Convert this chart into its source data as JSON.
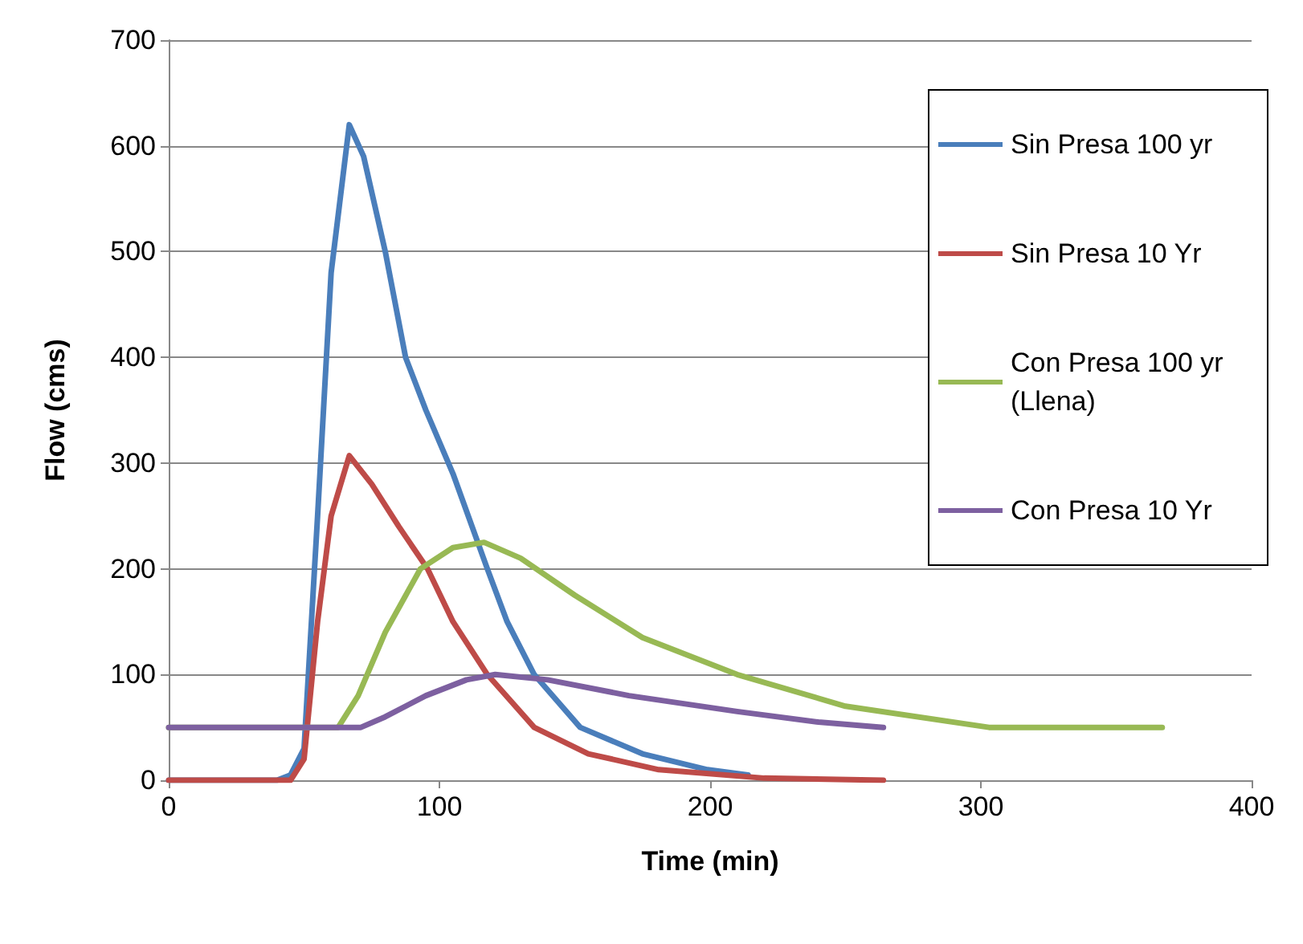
{
  "chart_data": {
    "type": "line",
    "xlabel": "Time (min)",
    "ylabel": "Flow (cms)",
    "xlim": [
      0,
      400
    ],
    "xticks": [
      0,
      100,
      200,
      300,
      400
    ],
    "ylim": [
      0,
      700
    ],
    "yticks": [
      0,
      100,
      200,
      300,
      400,
      500,
      600,
      700
    ],
    "grid": "y",
    "legend": "top right",
    "marker": "none",
    "line_style": "solid",
    "series": [
      {
        "name": "Sin Presa 100 yr",
        "color": "#4a7ebb",
        "x": [
          0,
          40,
          45,
          50,
          55,
          60,
          66.7,
          72,
          80,
          87.5,
          95,
          105,
          117.7,
          125,
          135,
          152,
          175,
          199,
          214
        ],
        "values": [
          0,
          0,
          5,
          30,
          250,
          480,
          620,
          590,
          500,
          400,
          350,
          290,
          200,
          150,
          100,
          50,
          25,
          10,
          5
        ]
      },
      {
        "name": "Sin Presa 10 Yr",
        "color": "#be4b48",
        "x": [
          0,
          45,
          50,
          55,
          60,
          66.7,
          75,
          85,
          95.6,
          105,
          117.7,
          135,
          155,
          181,
          220,
          264
        ],
        "values": [
          0,
          0,
          20,
          150,
          250,
          307,
          280,
          240,
          200,
          150,
          100,
          50,
          25,
          10,
          2,
          0
        ]
      },
      {
        "name": "Con Presa 100 yr (Llena)",
        "color": "#98b954",
        "x": [
          0,
          62.6,
          70,
          80,
          93,
          105,
          116.5,
          130,
          150,
          175,
          210,
          250,
          303,
          367
        ],
        "values": [
          50,
          50,
          80,
          140,
          200,
          220,
          225,
          210,
          175,
          135,
          100,
          70,
          50,
          50
        ]
      },
      {
        "name": "Con Presa 10 Yr",
        "color": "#7d60a0",
        "x": [
          0,
          71,
          80,
          95,
          110,
          120.6,
          140,
          170,
          210,
          240,
          264
        ],
        "values": [
          50,
          50,
          60,
          80,
          95,
          100,
          95,
          80,
          65,
          55,
          50
        ]
      }
    ]
  }
}
